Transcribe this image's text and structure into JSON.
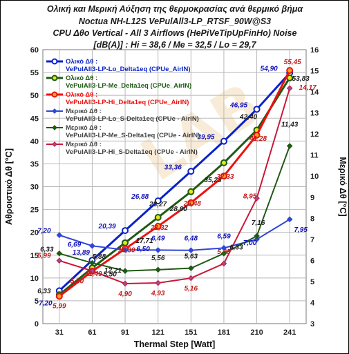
{
  "chart_data": {
    "type": "line",
    "title_lines": [
      "Ολική και Μερική Αύξηση της θερμοκρασίας ανά θερμικό βήμα",
      "Noctua NH-L12S  VePulAll3-LP_RTSF_90W@S3",
      "CPU Δθο Vertical  -  All 3  Airflows (HePiVeTipUpFinHo)  Noise",
      "[dB(A)] : Hi = 38,6 / Me = 32,5 / Lo = 29,7"
    ],
    "xlabel": "Thermal Step [Watt]",
    "ylabel_left": "Αθροιστικό Δθ [°C]",
    "ylabel_right": "Μερικό Δθ [°C]",
    "categories": [
      "31",
      "61",
      "91",
      "121",
      "151",
      "181",
      "210",
      "241"
    ],
    "y_left": {
      "min": 0,
      "max": 60,
      "step": 5
    },
    "y_right": {
      "min": 3,
      "max": 16,
      "step": 1
    },
    "y_left_ticks": [
      "0",
      "5",
      "10",
      "15",
      "20",
      "25",
      "30",
      "35",
      "40",
      "45",
      "50",
      "55",
      "60"
    ],
    "y_right_ticks": [
      "3",
      "4",
      "5",
      "6",
      "7",
      "8",
      "9",
      "10",
      "11",
      "12",
      "13",
      "14",
      "15",
      "16"
    ],
    "grid": true,
    "legend_position": "top-left",
    "watermark": "LAB",
    "series": [
      {
        "name": "Ολικό Δθ : VePulAll3-LP-Lo_Delta1eq (CPUe_AirIN)",
        "axis": "left",
        "color": "#0a22c8",
        "marker_fill": "#ffffff",
        "values": [
          7.2,
          13.89,
          20.39,
          26.88,
          33.36,
          39.95,
          46.95,
          54.9
        ],
        "labels": [
          "7,20",
          "13,89",
          "20,39",
          "26,88",
          "33,36",
          "39,95",
          "46,95",
          "54,90"
        ],
        "label_color": "#1010b8"
      },
      {
        "name": "Ολικό Δθ : VePulAll3-LP-Me_Delta1eq (CPUe_AirIN)",
        "axis": "left",
        "color": "#1f5a14",
        "marker_fill": "#e3e619",
        "values": [
          6.33,
          12.21,
          17.71,
          23.27,
          28.9,
          35.23,
          42.4,
          53.83
        ],
        "labels": [
          "6,33",
          "12,21",
          "17,71",
          "23,27",
          "28,90",
          "35,23",
          "42,40",
          "53,83"
        ],
        "label_color": "#1e1e1e"
      },
      {
        "name": "Ολικό Δθ : VePulAll3-LP-Hi_Delta1eq (CPUe_AirIN)",
        "axis": "left",
        "color": "#ee1010",
        "marker_fill": "#f2a21a",
        "values": [
          5.99,
          11.49,
          16.39,
          21.32,
          26.48,
          32.33,
          41.28,
          55.45
        ],
        "labels": [
          "5,99",
          "11,49",
          "16,39",
          "21,32",
          "26,48",
          "32,33",
          "41,28",
          "55,45"
        ],
        "label_color": "#c41a1a"
      },
      {
        "name": "Μερικό Δθ : VePulAll3-LP-Lo_S-Delta1eq (CPUe - AirIN)",
        "axis": "right",
        "color": "#2f46d8",
        "marker_fill": "#2f46d8",
        "values": [
          7.2,
          6.69,
          6.5,
          6.49,
          6.48,
          6.59,
          7.0,
          7.95
        ],
        "labels": [
          "7,20",
          "6,69",
          "6,50",
          "6,49",
          "6,48",
          "6,59",
          "7,00",
          "7,95"
        ],
        "label_color": "#1010b8"
      },
      {
        "name": "Μερικό Δθ : VePulAll3-LP-Me_S-Delta1eq (CPUe - AirIN)",
        "axis": "right",
        "color": "#1f5a14",
        "marker_fill": "#1f5a14",
        "values": [
          6.33,
          5.88,
          5.5,
          5.56,
          5.63,
          6.33,
          7.16,
          11.43
        ],
        "labels": [
          "6,33",
          "5,88",
          "5,50",
          "5,56",
          "5,63",
          "6,33",
          "7,16",
          "11,43"
        ],
        "label_color": "#1e1e1e"
      },
      {
        "name": "Μερικό Δθ : VePulAll3-LP-Hi_S-Delta1eq (CPUe - AirIN)",
        "axis": "right",
        "color": "#c8183a",
        "marker_fill": "#9a4f9a",
        "values": [
          5.99,
          5.5,
          4.9,
          4.93,
          5.16,
          5.85,
          8.95,
          14.17
        ],
        "labels": [
          "5,99",
          "5,50",
          "4,90",
          "4,93",
          "5,16",
          "5,85",
          "8,95",
          "14,17"
        ],
        "label_color": "#c41a1a"
      }
    ]
  }
}
